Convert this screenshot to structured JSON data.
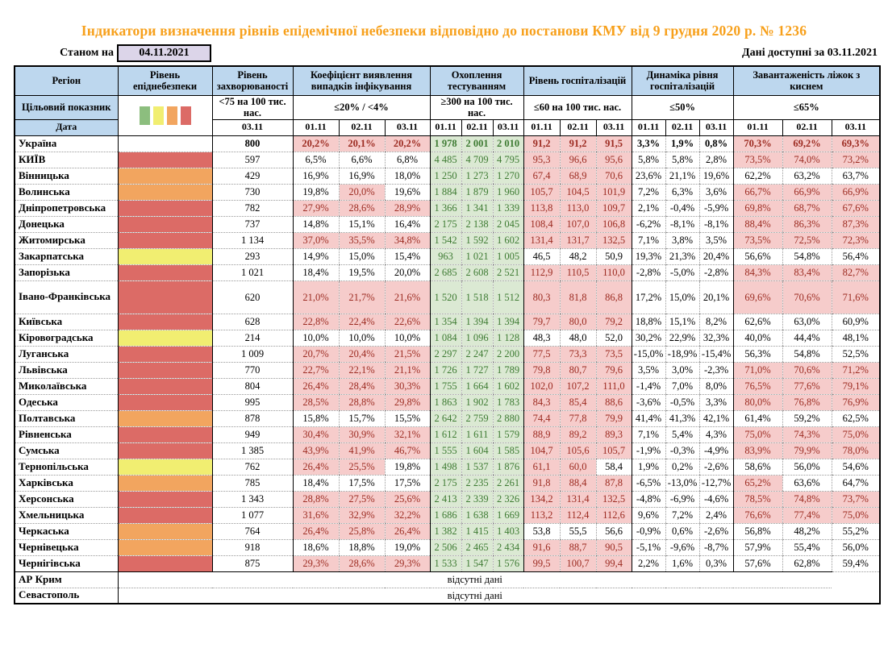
{
  "title": "Індикатори визначення рівнів епідемічної небезпеки відповідно до постанови КМУ від 9 грудня 2020 р. № 1236",
  "meta": {
    "as_of_label": "Станом на",
    "as_of_date": "04.11.2021",
    "available_label": "Дані доступні за",
    "available_date": "03.11.2021"
  },
  "legend_colors": {
    "green": "#8CBE7E",
    "yellow": "#F1EE71",
    "orange": "#F2A55F",
    "red": "#DC6B66"
  },
  "status_colors": {
    "exceed_fill": "#F6CCCB",
    "exceed_text": "#9C2B21",
    "ok_fill": "#DBE9D3",
    "ok_text": "#3E7B33",
    "header_fill": "#BDD7EE",
    "asof_fill": "#DCD5E9",
    "title_text": "#F7A01B"
  },
  "header": {
    "region": "Регіон",
    "target": "Цільовий показник",
    "date": "Дата",
    "groups": [
      {
        "title": "Рівень епіднебезпеки",
        "target": "",
        "dates": []
      },
      {
        "title": "Рівень захворюваності",
        "target": "<75 на 100 тис. нас.",
        "dates": [
          "03.11"
        ]
      },
      {
        "title": "Коефіцієнт виявлення випадків інфікування",
        "target": "≤20% / <4%",
        "dates": [
          "01.11",
          "02.11",
          "03.11"
        ]
      },
      {
        "title": "Охоплення тестуванням",
        "target": "≥300 на 100 тис. нас.",
        "dates": [
          "01.11",
          "02.11",
          "03.11"
        ]
      },
      {
        "title": "Рівень госпіталізацій",
        "target": "≤60 на 100 тис. нас.",
        "dates": [
          "01.11",
          "02.11",
          "03.11"
        ]
      },
      {
        "title": "Динаміка рівня госпіталізацій",
        "target": "≤50%",
        "dates": [
          "01.11",
          "02.11",
          "03.11"
        ]
      },
      {
        "title": "Завантаженість ліжок з киснем",
        "target": "≤65%",
        "dates": [
          "01.11",
          "02.11",
          "03.11"
        ]
      }
    ]
  },
  "no_data_text": "відсутні дані",
  "no_data_rows": [
    "АР Крим",
    "Севастополь"
  ],
  "rows": [
    {
      "name": "Україна",
      "bold": true,
      "level": "none",
      "incidence": "800",
      "detection": {
        "v": [
          "20,2%",
          "20,1%",
          "20,2%"
        ],
        "f": "rrr"
      },
      "testing": [
        "1 978",
        "2 001",
        "2 010"
      ],
      "hosp": {
        "v": [
          "91,2",
          "91,2",
          "91,5"
        ],
        "f": "rrr"
      },
      "dynamics": [
        "3,3%",
        "1,9%",
        "0,8%"
      ],
      "beds": {
        "v": [
          "70,3%",
          "69,2%",
          "69,3%"
        ],
        "f": "rrr"
      }
    },
    {
      "name": "КИЇВ",
      "level": "red",
      "incidence": "597",
      "detection": {
        "v": [
          "6,5%",
          "6,6%",
          "6,8%"
        ],
        "f": "www"
      },
      "testing": [
        "4 485",
        "4 709",
        "4 795"
      ],
      "hosp": {
        "v": [
          "95,3",
          "96,6",
          "95,6"
        ],
        "f": "rrr"
      },
      "dynamics": [
        "5,8%",
        "5,8%",
        "2,8%"
      ],
      "beds": {
        "v": [
          "73,5%",
          "74,0%",
          "73,2%"
        ],
        "f": "rrr"
      }
    },
    {
      "name": "Вінницька",
      "level": "orange",
      "incidence": "429",
      "detection": {
        "v": [
          "16,9%",
          "16,9%",
          "18,0%"
        ],
        "f": "www"
      },
      "testing": [
        "1 250",
        "1 273",
        "1 270"
      ],
      "hosp": {
        "v": [
          "67,4",
          "68,9",
          "70,6"
        ],
        "f": "rrr"
      },
      "dynamics": [
        "23,6%",
        "21,1%",
        "19,6%"
      ],
      "beds": {
        "v": [
          "62,2%",
          "63,2%",
          "63,7%"
        ],
        "f": "www"
      }
    },
    {
      "name": "Волинська",
      "level": "orange",
      "incidence": "730",
      "detection": {
        "v": [
          "19,8%",
          "20,0%",
          "19,6%"
        ],
        "f": "wrw"
      },
      "testing": [
        "1 884",
        "1 879",
        "1 960"
      ],
      "hosp": {
        "v": [
          "105,7",
          "104,5",
          "101,9"
        ],
        "f": "rrr"
      },
      "dynamics": [
        "7,2%",
        "6,3%",
        "3,6%"
      ],
      "beds": {
        "v": [
          "66,7%",
          "66,9%",
          "66,9%"
        ],
        "f": "rrr"
      }
    },
    {
      "name": "Дніпропетровська",
      "level": "red",
      "incidence": "782",
      "detection": {
        "v": [
          "27,9%",
          "28,6%",
          "28,9%"
        ],
        "f": "rrr"
      },
      "testing": [
        "1 366",
        "1 341",
        "1 339"
      ],
      "hosp": {
        "v": [
          "113,8",
          "113,0",
          "109,7"
        ],
        "f": "rrr"
      },
      "dynamics": [
        "2,1%",
        "-0,4%",
        "-5,9%"
      ],
      "beds": {
        "v": [
          "69,8%",
          "68,7%",
          "67,6%"
        ],
        "f": "rrr"
      }
    },
    {
      "name": "Донецька",
      "level": "red",
      "incidence": "737",
      "detection": {
        "v": [
          "14,8%",
          "15,1%",
          "16,4%"
        ],
        "f": "www"
      },
      "testing": [
        "2 175",
        "2 138",
        "2 045"
      ],
      "hosp": {
        "v": [
          "108,4",
          "107,0",
          "106,8"
        ],
        "f": "rrr"
      },
      "dynamics": [
        "-6,2%",
        "-8,1%",
        "-8,1%"
      ],
      "beds": {
        "v": [
          "88,4%",
          "86,3%",
          "87,3%"
        ],
        "f": "rrr"
      }
    },
    {
      "name": "Житомирська",
      "level": "red",
      "incidence": "1 134",
      "detection": {
        "v": [
          "37,0%",
          "35,5%",
          "34,8%"
        ],
        "f": "rrr"
      },
      "testing": [
        "1 542",
        "1 592",
        "1 602"
      ],
      "hosp": {
        "v": [
          "131,4",
          "131,7",
          "132,5"
        ],
        "f": "rrr"
      },
      "dynamics": [
        "7,1%",
        "3,8%",
        "3,5%"
      ],
      "beds": {
        "v": [
          "73,5%",
          "72,5%",
          "72,3%"
        ],
        "f": "rrr"
      }
    },
    {
      "name": "Закарпатська",
      "level": "yellow",
      "incidence": "293",
      "detection": {
        "v": [
          "14,9%",
          "15,0%",
          "15,4%"
        ],
        "f": "www"
      },
      "testing": [
        "963",
        "1 021",
        "1 005"
      ],
      "hosp": {
        "v": [
          "46,5",
          "48,2",
          "50,9"
        ],
        "f": "www"
      },
      "dynamics": [
        "19,3%",
        "21,3%",
        "20,4%"
      ],
      "beds": {
        "v": [
          "56,6%",
          "54,8%",
          "56,4%"
        ],
        "f": "www"
      }
    },
    {
      "name": "Запорізька",
      "level": "red",
      "incidence": "1 021",
      "detection": {
        "v": [
          "18,4%",
          "19,5%",
          "20,0%"
        ],
        "f": "www"
      },
      "testing": [
        "2 685",
        "2 608",
        "2 521"
      ],
      "hosp": {
        "v": [
          "112,9",
          "110,5",
          "110,0"
        ],
        "f": "rrr"
      },
      "dynamics": [
        "-2,8%",
        "-5,0%",
        "-2,8%"
      ],
      "beds": {
        "v": [
          "84,3%",
          "83,4%",
          "82,7%"
        ],
        "f": "rrr"
      }
    },
    {
      "name": "Івано-Франківська",
      "tall": true,
      "level": "red",
      "incidence": "620",
      "detection": {
        "v": [
          "21,0%",
          "21,7%",
          "21,6%"
        ],
        "f": "rrr"
      },
      "testing": [
        "1 520",
        "1 518",
        "1 512"
      ],
      "hosp": {
        "v": [
          "80,3",
          "81,8",
          "86,8"
        ],
        "f": "rrr"
      },
      "dynamics": [
        "17,2%",
        "15,0%",
        "20,1%"
      ],
      "beds": {
        "v": [
          "69,6%",
          "70,6%",
          "71,6%"
        ],
        "f": "rrr"
      }
    },
    {
      "name": "Київська",
      "level": "red",
      "incidence": "628",
      "detection": {
        "v": [
          "22,8%",
          "22,4%",
          "22,6%"
        ],
        "f": "rrr"
      },
      "testing": [
        "1 354",
        "1 394",
        "1 394"
      ],
      "hosp": {
        "v": [
          "79,7",
          "80,0",
          "79,2"
        ],
        "f": "rrr"
      },
      "dynamics": [
        "18,8%",
        "15,1%",
        "8,2%"
      ],
      "beds": {
        "v": [
          "62,6%",
          "63,0%",
          "60,9%"
        ],
        "f": "www"
      }
    },
    {
      "name": "Кіровоградська",
      "level": "yellow",
      "incidence": "214",
      "detection": {
        "v": [
          "10,0%",
          "10,0%",
          "10,0%"
        ],
        "f": "www"
      },
      "testing": [
        "1 084",
        "1 096",
        "1 128"
      ],
      "hosp": {
        "v": [
          "48,3",
          "48,0",
          "52,0"
        ],
        "f": "www"
      },
      "dynamics": [
        "30,2%",
        "22,9%",
        "32,3%"
      ],
      "beds": {
        "v": [
          "40,0%",
          "44,4%",
          "48,1%"
        ],
        "f": "www"
      }
    },
    {
      "name": "Луганська",
      "level": "red",
      "incidence": "1 009",
      "detection": {
        "v": [
          "20,7%",
          "20,4%",
          "21,5%"
        ],
        "f": "rrr"
      },
      "testing": [
        "2 297",
        "2 247",
        "2 200"
      ],
      "hosp": {
        "v": [
          "77,5",
          "73,3",
          "73,5"
        ],
        "f": "rrr"
      },
      "dynamics": [
        "-15,0%",
        "-18,9%",
        "-15,4%"
      ],
      "beds": {
        "v": [
          "56,3%",
          "54,8%",
          "52,5%"
        ],
        "f": "www"
      }
    },
    {
      "name": "Львівська",
      "level": "red",
      "incidence": "770",
      "detection": {
        "v": [
          "22,7%",
          "22,1%",
          "21,1%"
        ],
        "f": "rrr"
      },
      "testing": [
        "1 726",
        "1 727",
        "1 789"
      ],
      "hosp": {
        "v": [
          "79,8",
          "80,7",
          "79,6"
        ],
        "f": "rrr"
      },
      "dynamics": [
        "3,5%",
        "3,0%",
        "-2,3%"
      ],
      "beds": {
        "v": [
          "71,0%",
          "70,6%",
          "71,2%"
        ],
        "f": "rrr"
      }
    },
    {
      "name": "Миколаївська",
      "level": "red",
      "incidence": "804",
      "detection": {
        "v": [
          "26,4%",
          "28,4%",
          "30,3%"
        ],
        "f": "rrr"
      },
      "testing": [
        "1 755",
        "1 664",
        "1 602"
      ],
      "hosp": {
        "v": [
          "102,0",
          "107,2",
          "111,0"
        ],
        "f": "rrr"
      },
      "dynamics": [
        "-1,4%",
        "7,0%",
        "8,0%"
      ],
      "beds": {
        "v": [
          "76,5%",
          "77,6%",
          "79,1%"
        ],
        "f": "rrr"
      }
    },
    {
      "name": "Одеська",
      "level": "red",
      "incidence": "995",
      "detection": {
        "v": [
          "28,5%",
          "28,8%",
          "29,8%"
        ],
        "f": "rrr"
      },
      "testing": [
        "1 863",
        "1 902",
        "1 783"
      ],
      "hosp": {
        "v": [
          "84,3",
          "85,4",
          "88,6"
        ],
        "f": "rrr"
      },
      "dynamics": [
        "-3,6%",
        "-0,5%",
        "3,3%"
      ],
      "beds": {
        "v": [
          "80,0%",
          "76,8%",
          "76,9%"
        ],
        "f": "rrr"
      }
    },
    {
      "name": "Полтавська",
      "level": "orange",
      "incidence": "878",
      "detection": {
        "v": [
          "15,8%",
          "15,7%",
          "15,5%"
        ],
        "f": "www"
      },
      "testing": [
        "2 642",
        "2 759",
        "2 880"
      ],
      "hosp": {
        "v": [
          "74,4",
          "77,8",
          "79,9"
        ],
        "f": "rrr"
      },
      "dynamics": [
        "41,4%",
        "41,3%",
        "42,1%"
      ],
      "beds": {
        "v": [
          "61,4%",
          "59,2%",
          "62,5%"
        ],
        "f": "www"
      }
    },
    {
      "name": "Рівненська",
      "level": "red",
      "incidence": "949",
      "detection": {
        "v": [
          "30,4%",
          "30,9%",
          "32,1%"
        ],
        "f": "rrr"
      },
      "testing": [
        "1 612",
        "1 611",
        "1 579"
      ],
      "hosp": {
        "v": [
          "88,9",
          "89,2",
          "89,3"
        ],
        "f": "rrr"
      },
      "dynamics": [
        "7,1%",
        "5,4%",
        "4,3%"
      ],
      "beds": {
        "v": [
          "75,0%",
          "74,3%",
          "75,0%"
        ],
        "f": "rrr"
      }
    },
    {
      "name": "Сумська",
      "level": "red",
      "incidence": "1 385",
      "detection": {
        "v": [
          "43,9%",
          "41,9%",
          "46,7%"
        ],
        "f": "rrr"
      },
      "testing": [
        "1 555",
        "1 604",
        "1 585"
      ],
      "hosp": {
        "v": [
          "104,7",
          "105,6",
          "105,7"
        ],
        "f": "rrr"
      },
      "dynamics": [
        "-1,9%",
        "-0,3%",
        "-4,9%"
      ],
      "beds": {
        "v": [
          "83,9%",
          "79,9%",
          "78,0%"
        ],
        "f": "rrr"
      }
    },
    {
      "name": "Тернопільська",
      "level": "yellow",
      "incidence": "762",
      "detection": {
        "v": [
          "26,4%",
          "25,5%",
          "19,8%"
        ],
        "f": "rrw"
      },
      "testing": [
        "1 498",
        "1 537",
        "1 876"
      ],
      "hosp": {
        "v": [
          "61,1",
          "60,0",
          "58,4"
        ],
        "f": "rrw"
      },
      "dynamics": [
        "1,9%",
        "0,2%",
        "-2,6%"
      ],
      "beds": {
        "v": [
          "58,6%",
          "56,0%",
          "54,6%"
        ],
        "f": "www"
      }
    },
    {
      "name": "Харківська",
      "level": "orange",
      "incidence": "785",
      "detection": {
        "v": [
          "18,4%",
          "17,5%",
          "17,5%"
        ],
        "f": "www"
      },
      "testing": [
        "2 175",
        "2 235",
        "2 261"
      ],
      "hosp": {
        "v": [
          "91,8",
          "88,4",
          "87,8"
        ],
        "f": "rrr"
      },
      "dynamics": [
        "-6,5%",
        "-13,0%",
        "-12,7%"
      ],
      "beds": {
        "v": [
          "65,2%",
          "63,6%",
          "64,7%"
        ],
        "f": "rww"
      }
    },
    {
      "name": "Херсонська",
      "level": "red",
      "incidence": "1 343",
      "detection": {
        "v": [
          "28,8%",
          "27,5%",
          "25,6%"
        ],
        "f": "rrr"
      },
      "testing": [
        "2 413",
        "2 339",
        "2 326"
      ],
      "hosp": {
        "v": [
          "134,2",
          "131,4",
          "132,5"
        ],
        "f": "rrr"
      },
      "dynamics": [
        "-4,8%",
        "-6,9%",
        "-4,6%"
      ],
      "beds": {
        "v": [
          "78,5%",
          "74,8%",
          "73,7%"
        ],
        "f": "rrr"
      }
    },
    {
      "name": "Хмельницька",
      "level": "red",
      "incidence": "1 077",
      "detection": {
        "v": [
          "31,6%",
          "32,9%",
          "32,2%"
        ],
        "f": "rrr"
      },
      "testing": [
        "1 686",
        "1 638",
        "1 669"
      ],
      "hosp": {
        "v": [
          "113,2",
          "112,4",
          "112,6"
        ],
        "f": "rrr"
      },
      "dynamics": [
        "9,6%",
        "7,2%",
        "2,4%"
      ],
      "beds": {
        "v": [
          "76,6%",
          "77,4%",
          "75,0%"
        ],
        "f": "rrr"
      }
    },
    {
      "name": "Черкаська",
      "level": "orange",
      "incidence": "764",
      "detection": {
        "v": [
          "26,4%",
          "25,8%",
          "26,4%"
        ],
        "f": "rrr"
      },
      "testing": [
        "1 382",
        "1 415",
        "1 403"
      ],
      "hosp": {
        "v": [
          "53,8",
          "55,5",
          "56,6"
        ],
        "f": "www"
      },
      "dynamics": [
        "-0,9%",
        "0,6%",
        "-2,6%"
      ],
      "beds": {
        "v": [
          "56,8%",
          "48,2%",
          "55,2%"
        ],
        "f": "www"
      }
    },
    {
      "name": "Чернівецька",
      "level": "orange",
      "incidence": "918",
      "detection": {
        "v": [
          "18,6%",
          "18,8%",
          "19,0%"
        ],
        "f": "www"
      },
      "testing": [
        "2 506",
        "2 465",
        "2 434"
      ],
      "hosp": {
        "v": [
          "91,6",
          "88,7",
          "90,5"
        ],
        "f": "rrr"
      },
      "dynamics": [
        "-5,1%",
        "-9,6%",
        "-8,7%"
      ],
      "beds": {
        "v": [
          "57,9%",
          "55,4%",
          "56,0%"
        ],
        "f": "www"
      }
    },
    {
      "name": "Чернігівська",
      "level": "red",
      "incidence": "875",
      "detection": {
        "v": [
          "29,3%",
          "28,6%",
          "29,3%"
        ],
        "f": "rrr"
      },
      "testing": [
        "1 533",
        "1 547",
        "1 576"
      ],
      "hosp": {
        "v": [
          "99,5",
          "100,7",
          "99,4"
        ],
        "f": "rrr"
      },
      "dynamics": [
        "2,2%",
        "1,6%",
        "0,3%"
      ],
      "beds": {
        "v": [
          "57,6%",
          "62,8%",
          "59,4%"
        ],
        "f": "www"
      }
    }
  ]
}
